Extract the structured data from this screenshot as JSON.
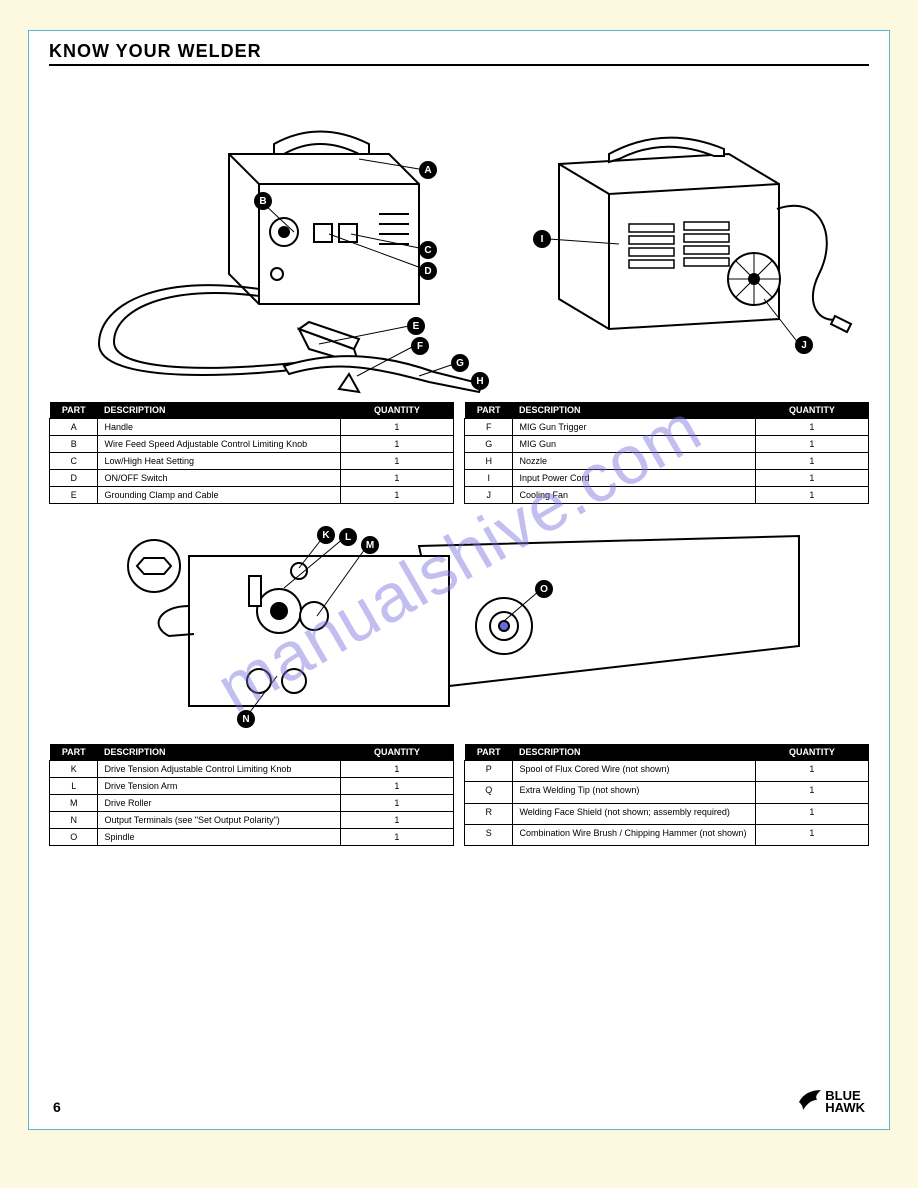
{
  "page": {
    "title": "KNOW YOUR WELDER",
    "continued": ""
  },
  "tables": {
    "t1": {
      "headers": [
        "PART",
        "DESCRIPTION",
        "QUANTITY"
      ],
      "rows": [
        [
          "A",
          "Handle",
          "1"
        ],
        [
          "B",
          "Wire Feed Speed Adjustable Control Limiting Knob",
          "1"
        ],
        [
          "C",
          "Low/High Heat Setting",
          "1"
        ],
        [
          "D",
          "ON/OFF Switch",
          "1"
        ],
        [
          "E",
          "Grounding Clamp and Cable",
          "1"
        ]
      ]
    },
    "t2": {
      "headers": [
        "PART",
        "DESCRIPTION",
        "QUANTITY"
      ],
      "rows": [
        [
          "F",
          "MIG Gun Trigger",
          "1"
        ],
        [
          "G",
          "MIG Gun",
          "1"
        ],
        [
          "H",
          "Nozzle",
          "1"
        ],
        [
          "I",
          "Input Power Cord",
          "1"
        ],
        [
          "J",
          "Cooling Fan",
          "1"
        ]
      ]
    },
    "t3": {
      "headers": [
        "PART",
        "DESCRIPTION",
        "QUANTITY"
      ],
      "rows": [
        [
          "K",
          "Drive Tension Adjustable Control Limiting Knob",
          "1"
        ],
        [
          "L",
          "Drive Tension Arm",
          "1"
        ],
        [
          "M",
          "Drive Roller",
          "1"
        ],
        [
          "N",
          "Output Terminals (see \"Set Output Polarity\")",
          "1"
        ],
        [
          "O",
          "Spindle",
          "1"
        ]
      ]
    },
    "t4": {
      "headers": [
        "PART",
        "DESCRIPTION",
        "QUANTITY"
      ],
      "rows": [
        [
          "P",
          "Spool of Flux Cored Wire (not shown)",
          "1"
        ],
        [
          "Q",
          "Extra Welding Tip (not shown)",
          "1"
        ],
        [
          "R",
          "Welding Face Shield (not shown; assembly required)",
          "1"
        ],
        [
          "S",
          "Combination Wire Brush / Chipping Hammer (not shown)",
          "1"
        ]
      ]
    }
  },
  "diagrams": {
    "top": {
      "front_callouts": [
        "A",
        "B",
        "C",
        "D",
        "E",
        "F",
        "G",
        "H"
      ],
      "rear_callouts": [
        "I",
        "J"
      ]
    },
    "mid": {
      "callouts": [
        "K",
        "L",
        "M",
        "N",
        "O"
      ]
    }
  },
  "footer": {
    "page_number": "6",
    "brand_line1": "BLUE",
    "brand_line2": "HAWK"
  },
  "watermark": "manualshive.com",
  "style": {
    "page_bg": "#ffffff",
    "outer_bg": "#fcf9e0",
    "border_color": "#5bb5d0",
    "table_header_bg": "#000000",
    "table_header_fg": "#ffffff",
    "watermark_color": "rgba(120,110,220,0.45)"
  }
}
